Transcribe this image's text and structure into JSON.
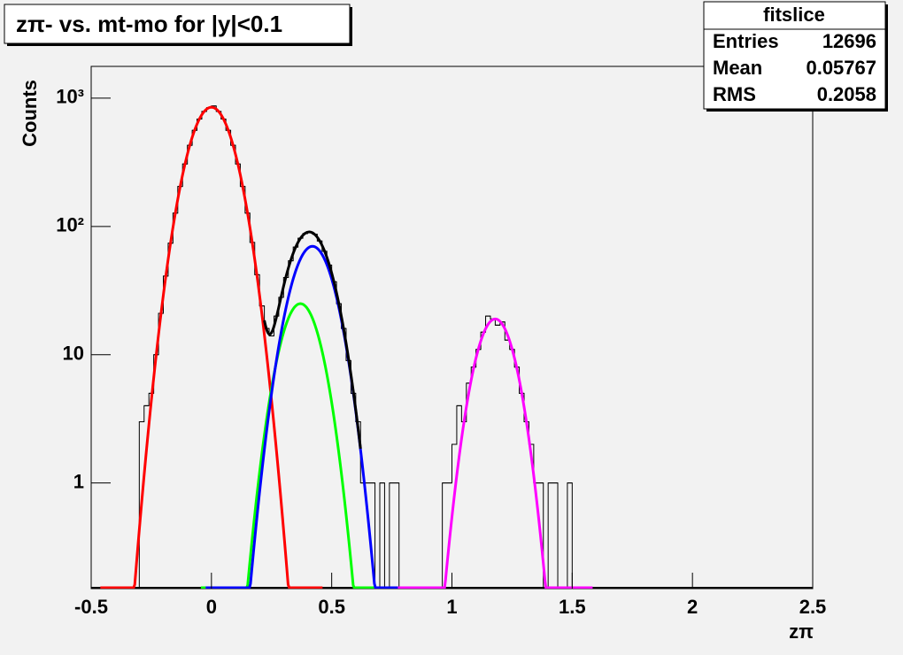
{
  "chart_data": {
    "type": "histogram",
    "title": "zπ- vs. mt-mo for |y|<0.1",
    "x_label": "zπ",
    "y_label": "Counts",
    "log_y": true,
    "color": "#000000",
    "bins": [
      -0.32,
      -0.3,
      -0.28,
      -0.26,
      -0.24,
      -0.22,
      -0.2,
      -0.18,
      -0.16,
      -0.14,
      -0.12,
      -0.1,
      -0.08,
      -0.06,
      -0.04,
      -0.02,
      0,
      0.02,
      0.04,
      0.06,
      0.08,
      0.1,
      0.12,
      0.14,
      0.16,
      0.18,
      0.2,
      0.22,
      0.24,
      0.26,
      0.28,
      0.3,
      0.32,
      0.34,
      0.36,
      0.38,
      0.4,
      0.42,
      0.44,
      0.46,
      0.48,
      0.5,
      0.52,
      0.54,
      0.56,
      0.58,
      0.6,
      0.62,
      0.64,
      0.66,
      0.68,
      0.7,
      0.72,
      0.74,
      0.76,
      0.78,
      0.8,
      0.82,
      0.84,
      0.86,
      0.88,
      0.9,
      0.92,
      0.94,
      0.96,
      0.98,
      1,
      1.02,
      1.04,
      1.06,
      1.08,
      1.1,
      1.12,
      1.14,
      1.16,
      1.18,
      1.2,
      1.22,
      1.24,
      1.26,
      1.28,
      1.3,
      1.32,
      1.34,
      1.36,
      1.38,
      1.4,
      1.42,
      1.44,
      1.46,
      1.48,
      1.5,
      1.52
    ],
    "values": [
      0,
      3,
      4,
      5,
      10,
      21,
      41,
      74,
      127,
      205,
      307,
      429,
      562,
      688,
      788,
      843,
      870,
      788,
      688,
      562,
      429,
      307,
      205,
      127,
      75,
      42,
      24,
      16,
      14,
      20,
      28,
      40,
      54,
      69,
      81,
      88,
      90,
      87,
      77,
      64,
      50,
      37,
      25,
      16,
      9,
      5,
      3,
      1,
      1,
      1,
      0,
      1,
      0,
      1,
      1,
      0,
      0,
      0,
      0,
      0,
      0,
      0,
      0,
      0,
      1,
      1,
      2,
      4,
      3,
      6,
      8,
      11,
      15,
      20,
      19,
      17,
      18,
      13,
      11,
      8,
      5,
      3,
      2,
      1,
      1,
      0,
      1,
      1,
      0,
      0,
      1,
      0
    ],
    "fits": [
      {
        "color": "#ff0000",
        "amplitude": 850,
        "mean": 0,
        "sigma": 0.077
      },
      {
        "color": "#00ff00",
        "amplitude": 25,
        "mean": 0.37,
        "sigma": 0.069
      },
      {
        "color": "#0000ff",
        "amplitude": 70,
        "mean": 0.42,
        "sigma": 0.074
      },
      {
        "color": "#ff00ff",
        "amplitude": 19,
        "mean": 1.18,
        "sigma": 0.0675
      }
    ],
    "total_fit": {
      "color": "#000000",
      "range": [
        0.22,
        0.62
      ]
    },
    "xlim": [
      -0.5,
      2.5
    ],
    "xticks": [
      -0.5,
      0,
      0.5,
      1,
      1.5,
      2,
      2.5
    ],
    "ylim": [
      0.15,
      1770
    ],
    "yticks": [
      1,
      10,
      {
        "value": 100,
        "label": "10²"
      },
      {
        "value": 1000,
        "label": "10³"
      }
    ],
    "stats": {
      "title": "fitslice",
      "rows": [
        {
          "label": "Entries",
          "value": 12696
        },
        {
          "label": "Mean",
          "value": 0.05767
        },
        {
          "label": "RMS",
          "value": 0.2058
        }
      ]
    }
  }
}
